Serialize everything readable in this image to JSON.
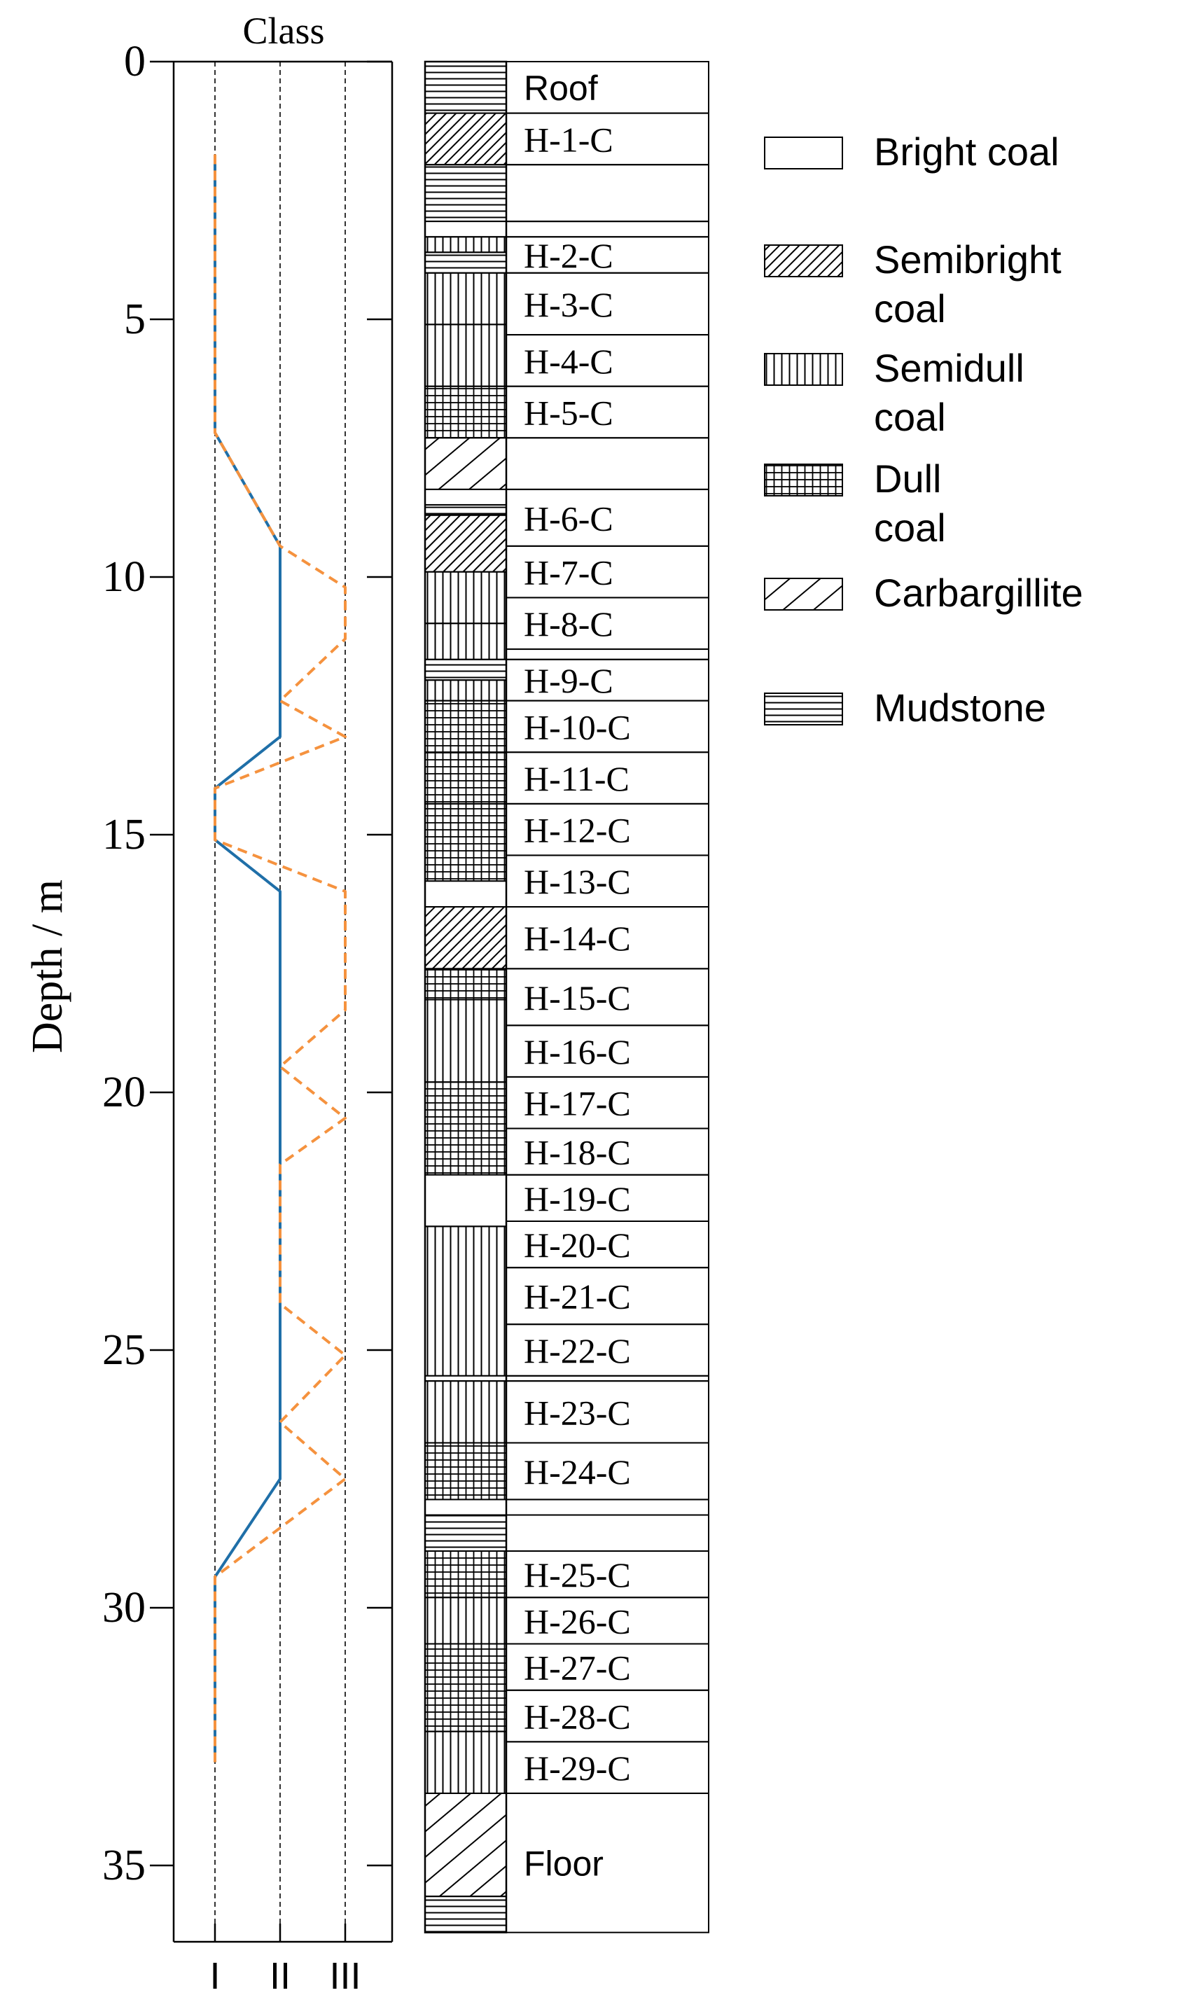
{
  "chart_data": {
    "type": "line",
    "title": "",
    "x_axis_title": "Class",
    "ylabel": "Depth / m",
    "ylim": [
      0,
      36.5
    ],
    "y_ticks": [
      0,
      5,
      10,
      15,
      20,
      25,
      30,
      35
    ],
    "x_categories": [
      "I",
      "II",
      "III"
    ],
    "grid": "dashed verticals at each class",
    "series": [
      {
        "style": "solid",
        "color": "#1f6fa8",
        "points": [
          [
            1,
            1.8
          ],
          [
            1,
            7.2
          ],
          [
            2,
            9.4
          ],
          [
            2,
            13.1
          ],
          [
            1,
            14.1
          ],
          [
            1,
            15.1
          ],
          [
            2,
            16.1
          ],
          [
            2,
            27.5
          ],
          [
            1,
            29.4
          ],
          [
            1,
            33.0
          ]
        ]
      },
      {
        "style": "dashed",
        "color": "#f5923e",
        "points": [
          [
            1,
            1.8
          ],
          [
            1,
            7.2
          ],
          [
            2,
            9.4
          ],
          [
            3,
            10.2
          ],
          [
            3,
            11.2
          ],
          [
            2,
            12.4
          ],
          [
            3,
            13.1
          ],
          [
            1,
            14.1
          ],
          [
            1,
            15.1
          ],
          [
            3,
            16.1
          ],
          [
            3,
            18.4
          ],
          [
            2,
            19.5
          ],
          [
            3,
            20.5
          ],
          [
            2,
            21.4
          ],
          [
            2,
            24.1
          ],
          [
            3,
            25.1
          ],
          [
            2,
            26.4
          ],
          [
            3,
            27.5
          ],
          [
            1,
            29.4
          ],
          [
            1,
            33.0
          ]
        ]
      }
    ],
    "column_layers": [
      {
        "top": 0.0,
        "bottom": 1.0,
        "lithology": "mudstone",
        "label": "Roof"
      },
      {
        "top": 1.0,
        "bottom": 2.0,
        "lithology": "semibright",
        "label": "H-1-C"
      },
      {
        "top": 2.0,
        "bottom": 3.1,
        "lithology": "mudstone",
        "label": ""
      },
      {
        "top": 3.1,
        "bottom": 3.4,
        "lithology": "bright",
        "label": ""
      },
      {
        "top": 3.4,
        "bottom": 3.7,
        "lithology": "semidull",
        "label": "H-2-C"
      },
      {
        "top": 3.7,
        "bottom": 4.1,
        "lithology": "mudstone",
        "label": ""
      },
      {
        "top": 4.1,
        "bottom": 5.1,
        "lithology": "semidull",
        "label": "H-3-C"
      },
      {
        "top": 5.1,
        "bottom": 6.3,
        "lithology": "semidull",
        "label": "H-4-C"
      },
      {
        "top": 6.3,
        "bottom": 7.3,
        "lithology": "dull",
        "label": "H-5-C"
      },
      {
        "top": 7.3,
        "bottom": 8.3,
        "lithology": "carbargillite",
        "label": ""
      },
      {
        "top": 8.3,
        "bottom": 8.6,
        "lithology": "bright",
        "label": ""
      },
      {
        "top": 8.6,
        "bottom": 8.8,
        "lithology": "mudstone",
        "label": ""
      },
      {
        "top": 8.8,
        "bottom": 9.9,
        "lithology": "semibright",
        "label": "H-6-C"
      },
      {
        "top": 9.9,
        "bottom": 10.9,
        "lithology": "semidull",
        "label": "H-7-C"
      },
      {
        "top": 10.9,
        "bottom": 11.6,
        "lithology": "semidull",
        "label": "H-8-C"
      },
      {
        "top": 11.6,
        "bottom": 12.0,
        "lithology": "mudstone",
        "label": ""
      },
      {
        "top": 12.0,
        "bottom": 12.4,
        "lithology": "semidull",
        "label": "H-9-C"
      },
      {
        "top": 12.4,
        "bottom": 13.4,
        "lithology": "dull",
        "label": "H-10-C"
      },
      {
        "top": 13.4,
        "bottom": 14.4,
        "lithology": "dull",
        "label": "H-11-C"
      },
      {
        "top": 14.4,
        "bottom": 15.9,
        "lithology": "dull",
        "label": "H-12-C"
      },
      {
        "top": 15.9,
        "bottom": 16.4,
        "lithology": "bright",
        "label": "H-13-C"
      },
      {
        "top": 16.4,
        "bottom": 17.6,
        "lithology": "semibright",
        "label": "H-14-C"
      },
      {
        "top": 17.6,
        "bottom": 18.2,
        "lithology": "dull",
        "label": "H-15-C"
      },
      {
        "top": 18.2,
        "bottom": 19.8,
        "lithology": "semidull",
        "label": "H-16-C"
      },
      {
        "top": 19.8,
        "bottom": 21.6,
        "lithology": "dull",
        "label": "H-17-C"
      },
      {
        "top": 21.6,
        "bottom": 22.6,
        "lithology": "bright",
        "label": "H-18-C"
      },
      {
        "top": 22.6,
        "bottom": 25.5,
        "lithology": "semidull",
        "label": "H-19-C"
      },
      {
        "top": 25.5,
        "bottom": 25.6,
        "lithology": "bright",
        "label": ""
      },
      {
        "top": 25.6,
        "bottom": 26.8,
        "lithology": "semidull",
        "label": "H-20-C"
      },
      {
        "top": 26.8,
        "bottom": 27.9,
        "lithology": "dull",
        "label": ""
      },
      {
        "top": 27.9,
        "bottom": 28.2,
        "lithology": "bright",
        "label": ""
      },
      {
        "top": 28.2,
        "bottom": 28.9,
        "lithology": "mudstone",
        "label": ""
      },
      {
        "top": 28.9,
        "bottom": 29.8,
        "lithology": "dull",
        "label": ""
      },
      {
        "top": 29.8,
        "bottom": 30.7,
        "lithology": "semidull",
        "label": ""
      },
      {
        "top": 30.7,
        "bottom": 32.4,
        "lithology": "dull",
        "label": ""
      },
      {
        "top": 32.4,
        "bottom": 33.6,
        "lithology": "semidull",
        "label": ""
      },
      {
        "top": 33.6,
        "bottom": 35.6,
        "lithology": "carbargillite",
        "label": "Floor"
      },
      {
        "top": 35.6,
        "bottom": 36.3,
        "lithology": "mudstone",
        "label": ""
      }
    ],
    "column_labels": [
      {
        "top": 0.0,
        "bottom": 1.0,
        "label": "Roof"
      },
      {
        "top": 1.0,
        "bottom": 2.0,
        "label": "H-1-C"
      },
      {
        "top": 2.0,
        "bottom": 3.1,
        "label": ""
      },
      {
        "top": 3.1,
        "bottom": 3.4,
        "label": ""
      },
      {
        "top": 3.4,
        "bottom": 4.1,
        "label": "H-2-C"
      },
      {
        "top": 4.1,
        "bottom": 5.3,
        "label": "H-3-C"
      },
      {
        "top": 5.3,
        "bottom": 6.3,
        "label": "H-4-C"
      },
      {
        "top": 6.3,
        "bottom": 7.3,
        "label": "H-5-C"
      },
      {
        "top": 7.3,
        "bottom": 8.3,
        "label": ""
      },
      {
        "top": 8.3,
        "bottom": 9.4,
        "label": "H-6-C"
      },
      {
        "top": 9.4,
        "bottom": 10.4,
        "label": "H-7-C"
      },
      {
        "top": 10.4,
        "bottom": 11.4,
        "label": "H-8-C"
      },
      {
        "top": 11.4,
        "bottom": 11.6,
        "label": ""
      },
      {
        "top": 11.6,
        "bottom": 12.4,
        "label": "H-9-C"
      },
      {
        "top": 12.4,
        "bottom": 13.4,
        "label": "H-10-C"
      },
      {
        "top": 13.4,
        "bottom": 14.4,
        "label": "H-11-C"
      },
      {
        "top": 14.4,
        "bottom": 15.4,
        "label": "H-12-C"
      },
      {
        "top": 15.4,
        "bottom": 16.4,
        "label": "H-13-C"
      },
      {
        "top": 16.4,
        "bottom": 17.6,
        "label": "H-14-C"
      },
      {
        "top": 17.6,
        "bottom": 18.7,
        "label": "H-15-C"
      },
      {
        "top": 18.7,
        "bottom": 19.7,
        "label": "H-16-C"
      },
      {
        "top": 19.7,
        "bottom": 20.7,
        "label": "H-17-C"
      },
      {
        "top": 20.7,
        "bottom": 21.6,
        "label": "H-18-C"
      },
      {
        "top": 21.6,
        "bottom": 22.5,
        "label": "H-19-C"
      },
      {
        "top": 22.5,
        "bottom": 23.4,
        "label": "H-20-C"
      },
      {
        "top": 23.4,
        "bottom": 24.5,
        "label": "H-21-C"
      },
      {
        "top": 24.5,
        "bottom": 25.5,
        "label": "H-22-C"
      },
      {
        "top": 25.5,
        "bottom": 25.6,
        "label": ""
      },
      {
        "top": 25.6,
        "bottom": 26.8,
        "label": "H-23-C"
      },
      {
        "top": 26.8,
        "bottom": 27.9,
        "label": "H-24-C"
      },
      {
        "top": 27.9,
        "bottom": 28.2,
        "label": ""
      },
      {
        "top": 28.2,
        "bottom": 28.9,
        "label": ""
      },
      {
        "top": 28.9,
        "bottom": 29.8,
        "label": "H-25-C"
      },
      {
        "top": 29.8,
        "bottom": 30.7,
        "label": "H-26-C"
      },
      {
        "top": 30.7,
        "bottom": 31.6,
        "label": "H-27-C"
      },
      {
        "top": 31.6,
        "bottom": 32.6,
        "label": "H-28-C"
      },
      {
        "top": 32.6,
        "bottom": 33.6,
        "label": "H-29-C"
      },
      {
        "top": 33.6,
        "bottom": 36.3,
        "label": "Floor"
      }
    ],
    "legend": [
      {
        "key": "bright",
        "lines": [
          "Bright coal"
        ]
      },
      {
        "key": "semibright",
        "lines": [
          "Semibright",
          "coal"
        ]
      },
      {
        "key": "semidull",
        "lines": [
          "Semidull",
          "coal"
        ]
      },
      {
        "key": "dull",
        "lines": [
          "Dull",
          "coal"
        ]
      },
      {
        "key": "carbargillite",
        "lines": [
          "Carbargillite"
        ]
      },
      {
        "key": "mudstone",
        "lines": [
          "Mudstone"
        ]
      }
    ],
    "legend_position": "right"
  }
}
